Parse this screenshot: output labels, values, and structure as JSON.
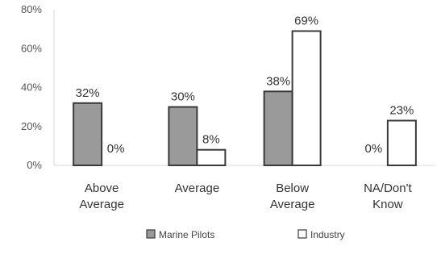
{
  "chart_data": {
    "type": "bar",
    "categories": [
      [
        "Above",
        "Average"
      ],
      [
        "Average"
      ],
      [
        "Below",
        "Average"
      ],
      [
        "NA/Don't",
        "Know"
      ]
    ],
    "series": [
      {
        "name": "Marine Pilots",
        "values": [
          32,
          30,
          38,
          0
        ],
        "labels": [
          "32%",
          "30%",
          "38%",
          "0%"
        ],
        "color": "#9a9a9a"
      },
      {
        "name": "Industry",
        "values": [
          0,
          8,
          69,
          23
        ],
        "labels": [
          "0%",
          "8%",
          "69%",
          "23%"
        ],
        "color": "#ffffff"
      }
    ],
    "yticks": [
      0,
      20,
      40,
      60,
      80
    ],
    "ytick_labels": [
      "0%",
      "20%",
      "40%",
      "60%",
      "80%"
    ],
    "ylim": [
      0,
      80
    ],
    "grid": false,
    "legend_position": "bottom",
    "title": "",
    "xlabel": "",
    "ylabel": ""
  }
}
